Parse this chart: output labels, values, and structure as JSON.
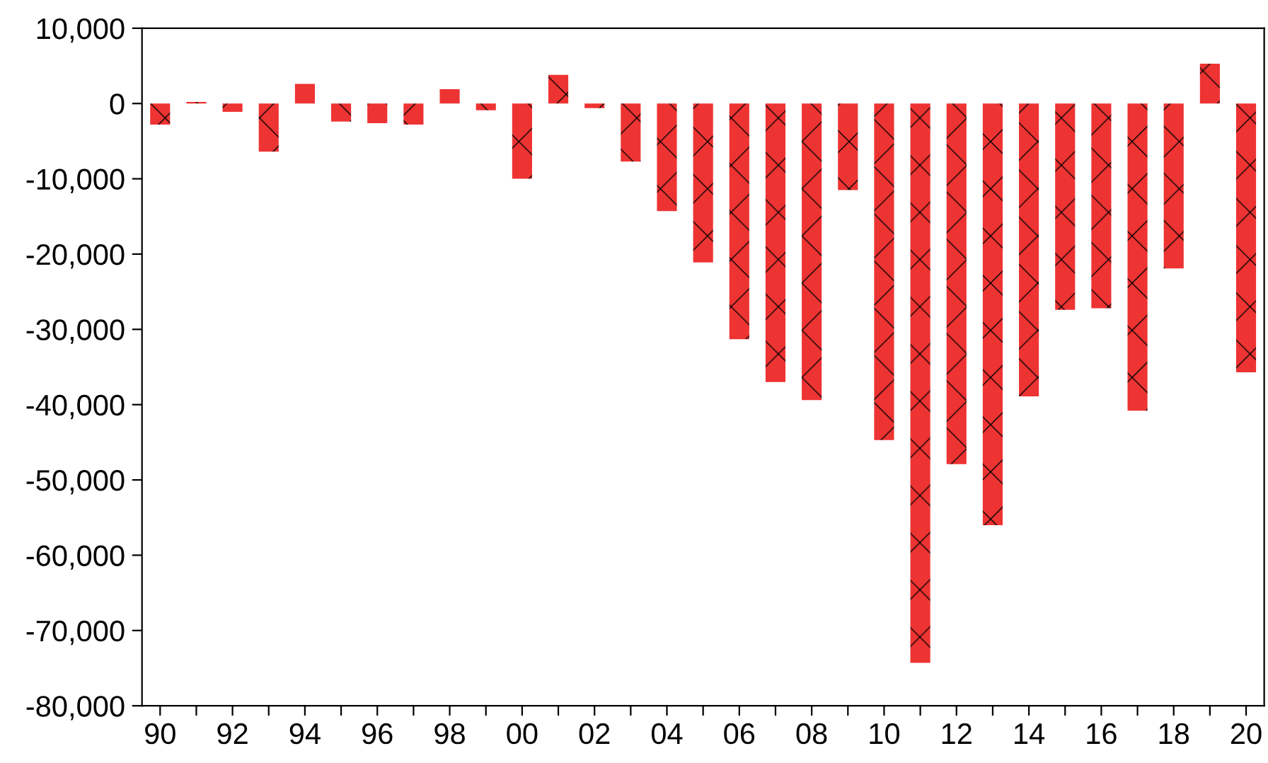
{
  "chart_data": {
    "type": "bar",
    "categories": [
      "90",
      null,
      "92",
      null,
      "94",
      null,
      "96",
      null,
      "98",
      null,
      "00",
      null,
      "02",
      null,
      "04",
      null,
      "06",
      null,
      "08",
      null,
      "10",
      null,
      "12",
      null,
      "14",
      null,
      "16",
      null,
      "18",
      null,
      "20"
    ],
    "values": [
      -2800,
      200,
      -1100,
      -6400,
      2600,
      -2400,
      -2600,
      -2800,
      1900,
      -900,
      -10000,
      3800,
      -600,
      -7700,
      -14300,
      -21100,
      -31300,
      -37000,
      -39400,
      -11500,
      -44700,
      -74300,
      -47900,
      -56000,
      -38900,
      -27400,
      -27200,
      -40800,
      -21900,
      5300,
      -35700
    ],
    "color": "#ee3333",
    "ylim": [
      -80000,
      10000
    ],
    "yticks": [
      {
        "value": 10000,
        "label": "10,000"
      },
      {
        "value": 0,
        "label": "0"
      },
      {
        "value": -10000,
        "label": "-10,000"
      },
      {
        "value": -20000,
        "label": "-20,000"
      },
      {
        "value": -30000,
        "label": "-30,000"
      },
      {
        "value": -40000,
        "label": "-40,000"
      },
      {
        "value": -50000,
        "label": "-50,000"
      },
      {
        "value": -60000,
        "label": "-60,000"
      },
      {
        "value": -70000,
        "label": "-70,000"
      },
      {
        "value": -80000,
        "label": "-80,000"
      }
    ],
    "grid": false,
    "legend": false
  }
}
